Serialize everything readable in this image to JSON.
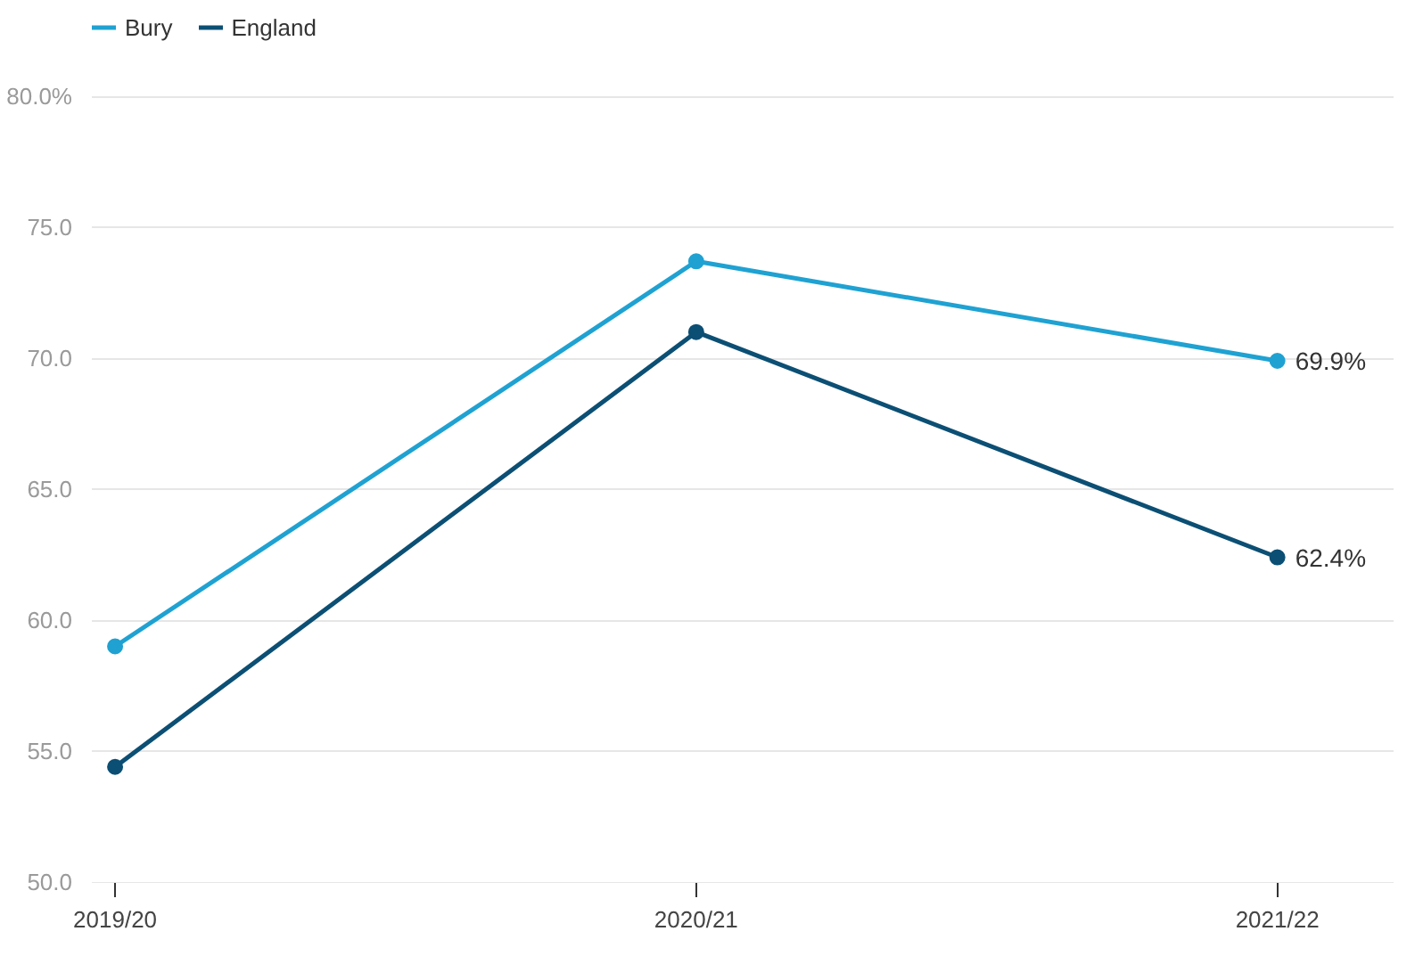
{
  "chart_data": {
    "type": "line",
    "categories": [
      "2019/20",
      "2020/21",
      "2021/22"
    ],
    "series": [
      {
        "name": "Bury",
        "color": "#1fa2d2",
        "values": [
          59.0,
          73.7,
          69.9
        ],
        "value_labels": [
          null,
          null,
          "69.9%"
        ]
      },
      {
        "name": "England",
        "color": "#0c4f74",
        "values": [
          54.4,
          71.0,
          62.4
        ],
        "value_labels": [
          null,
          null,
          "62.4%"
        ]
      }
    ],
    "ylim": [
      50,
      80
    ],
    "yticks": [
      {
        "value": 50,
        "label": "50.0"
      },
      {
        "value": 55,
        "label": "55.0"
      },
      {
        "value": 60,
        "label": "60.0"
      },
      {
        "value": 65,
        "label": "65.0"
      },
      {
        "value": 70,
        "label": "70.0"
      },
      {
        "value": 75,
        "label": "75.0"
      },
      {
        "value": 80,
        "label": "80.0%"
      }
    ],
    "grid": "y",
    "legend": "top left",
    "marker": "circle",
    "line_style": "solid"
  }
}
